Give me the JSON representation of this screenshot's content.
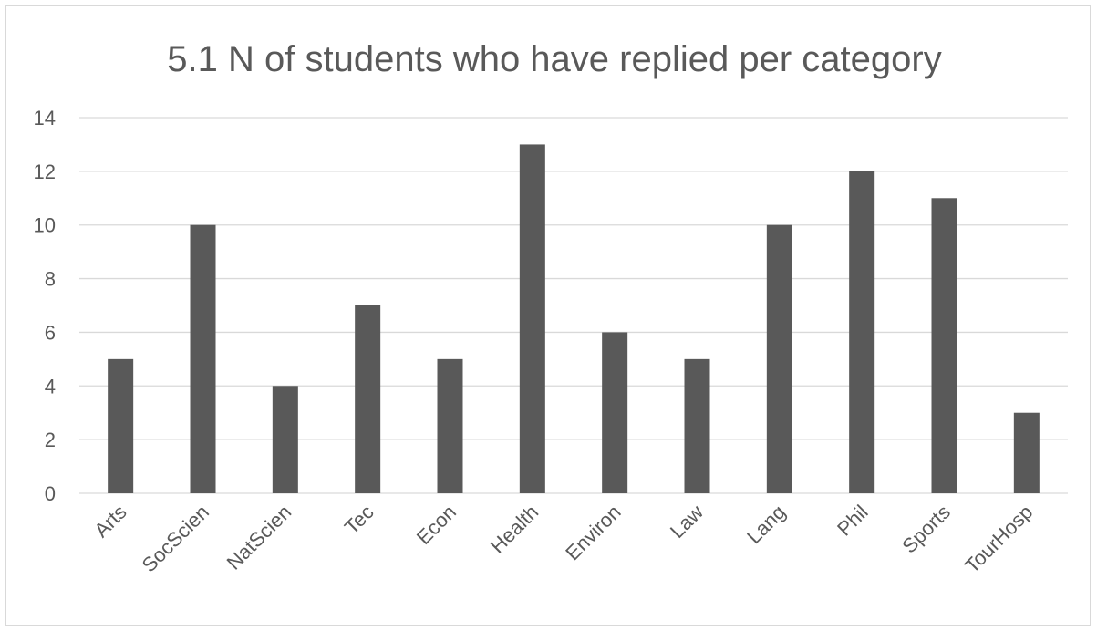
{
  "chart_data": {
    "type": "bar",
    "title": "5.1 N of students who have replied per category",
    "xlabel": "",
    "ylabel": "",
    "categories": [
      "Arts",
      "SocScien",
      "NatScien",
      "Tec",
      "Econ",
      "Health",
      "Environ",
      "Law",
      "Lang",
      "Phil",
      "Sports",
      "TourHosp"
    ],
    "values": [
      5,
      10,
      4,
      7,
      5,
      13,
      6,
      5,
      10,
      12,
      11,
      3
    ],
    "ylim": [
      0,
      14
    ],
    "yticks": [
      "0",
      "2",
      "4",
      "6",
      "8",
      "10",
      "12",
      "14"
    ],
    "grid": true,
    "legend": "none",
    "bar_color": "#595959",
    "grid_color": "#d9d9d9",
    "text_color": "#595959"
  }
}
